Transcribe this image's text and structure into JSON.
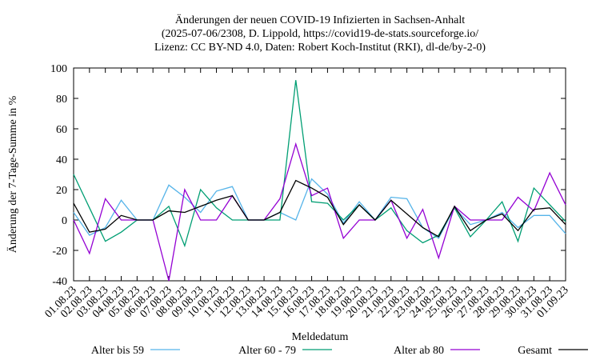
{
  "chart_data": {
    "type": "line",
    "title": [
      "Änderungen der neuen COVID-19 Infizierten in Sachsen-Anhalt",
      "(2025-07-06/2308, D. Lippold, https://covid19-de-stats.sourceforge.io/",
      "Lizenz: CC BY-ND 4.0, Daten: Robert Koch-Institut (RKI), dl-de/by-2-0)"
    ],
    "x_label": "Meldedatum",
    "y_label": "Änderung der 7-Tage-Summe in %",
    "categories": [
      "01.08.23",
      "02.08.23",
      "03.08.23",
      "04.08.23",
      "05.08.23",
      "06.08.23",
      "07.08.23",
      "08.08.23",
      "09.08.23",
      "10.08.23",
      "11.08.23",
      "12.08.23",
      "13.08.23",
      "14.08.23",
      "15.08.23",
      "16.08.23",
      "17.08.23",
      "18.08.23",
      "19.08.23",
      "20.08.23",
      "21.08.23",
      "22.08.23",
      "23.08.23",
      "24.08.23",
      "25.08.23",
      "26.08.23",
      "27.08.23",
      "28.08.23",
      "29.08.23",
      "30.08.23",
      "31.08.23",
      "01.09.23"
    ],
    "series": [
      {
        "name": "Alter bis 59",
        "color": "#56b4e9",
        "values": [
          5,
          -10,
          -5,
          13,
          0,
          0,
          23,
          15,
          5,
          19,
          22,
          0,
          0,
          5,
          0,
          27,
          17,
          -2,
          12,
          0,
          15,
          14,
          -5,
          -12,
          8,
          -3,
          0,
          5,
          -5,
          3,
          3,
          -9
        ]
      },
      {
        "name": "Alter 60 - 79",
        "color": "#009e73",
        "values": [
          30,
          8,
          -14,
          -8,
          0,
          0,
          9,
          -17,
          20,
          8,
          0,
          0,
          0,
          0,
          92,
          12,
          11,
          0,
          10,
          0,
          8,
          -7,
          -15,
          -10,
          8,
          -11,
          0,
          12,
          -14,
          21,
          10,
          -1
        ]
      },
      {
        "name": "Alter ab 80",
        "color": "#9400d3",
        "values": [
          0,
          -22,
          14,
          0,
          0,
          0,
          -40,
          20,
          0,
          0,
          16,
          0,
          0,
          14,
          50,
          16,
          21,
          -12,
          0,
          0,
          13,
          -12,
          7,
          -25,
          9,
          0,
          0,
          0,
          15,
          6,
          31,
          10
        ]
      },
      {
        "name": "Gesamt",
        "color": "#000000",
        "values": [
          11,
          -8,
          -6,
          3,
          0,
          0,
          6,
          5,
          9,
          13,
          16,
          0,
          0,
          5,
          26,
          21,
          15,
          -3,
          10,
          0,
          13,
          4,
          -5,
          -11,
          9,
          -7,
          0,
          4,
          -7,
          7,
          8,
          -3
        ]
      }
    ],
    "ylim": [
      -40,
      100
    ],
    "yticks": [
      -40,
      -20,
      0,
      20,
      40,
      60,
      80,
      100
    ],
    "grid": false
  }
}
